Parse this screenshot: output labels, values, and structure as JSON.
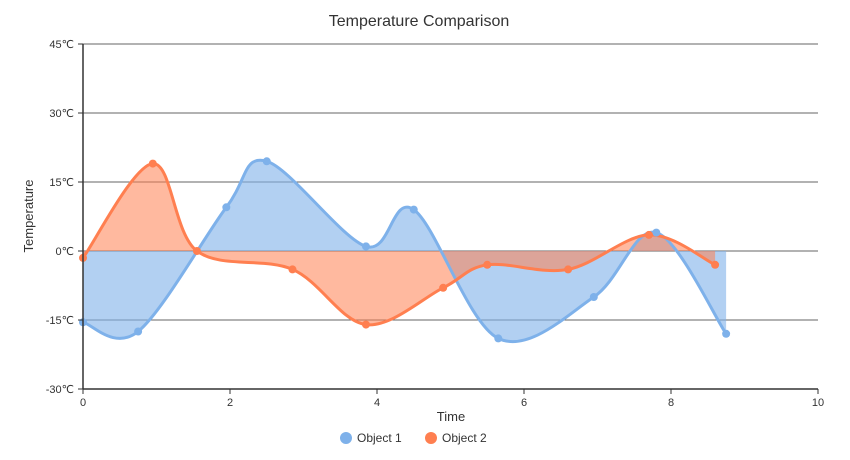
{
  "chart_data": {
    "type": "area",
    "title": "Temperature Comparison",
    "xlabel": "Time",
    "ylabel": "Temperature",
    "xlim": [
      0,
      10
    ],
    "ylim": [
      -30,
      45
    ],
    "x_ticks": [
      0,
      2,
      4,
      6,
      8,
      10
    ],
    "y_ticks": [
      -30,
      -15,
      0,
      15,
      30,
      45
    ],
    "y_tick_suffix": "℃",
    "grid": true,
    "legend_position": "bottom",
    "series": [
      {
        "name": "Object 1",
        "color": "#7eb1ea",
        "fill_opacity": 0.6,
        "points": [
          {
            "x": 0.0,
            "y": -15.5
          },
          {
            "x": 0.75,
            "y": -17.5
          },
          {
            "x": 1.95,
            "y": 9.5
          },
          {
            "x": 2.5,
            "y": 19.5
          },
          {
            "x": 3.85,
            "y": 1.0
          },
          {
            "x": 4.5,
            "y": 9.0
          },
          {
            "x": 5.65,
            "y": -19.0
          },
          {
            "x": 6.95,
            "y": -10.0
          },
          {
            "x": 7.8,
            "y": 4.0
          },
          {
            "x": 8.75,
            "y": -18.0
          }
        ]
      },
      {
        "name": "Object 2",
        "color": "#ff7f50",
        "fill_opacity": 0.55,
        "points": [
          {
            "x": 0.0,
            "y": -1.5
          },
          {
            "x": 0.95,
            "y": 19.0
          },
          {
            "x": 1.55,
            "y": 0.0
          },
          {
            "x": 2.85,
            "y": -4.0
          },
          {
            "x": 3.85,
            "y": -16.0
          },
          {
            "x": 4.9,
            "y": -8.0
          },
          {
            "x": 5.5,
            "y": -3.0
          },
          {
            "x": 6.6,
            "y": -4.0
          },
          {
            "x": 7.7,
            "y": 3.5
          },
          {
            "x": 8.6,
            "y": -3.0
          }
        ]
      }
    ]
  }
}
